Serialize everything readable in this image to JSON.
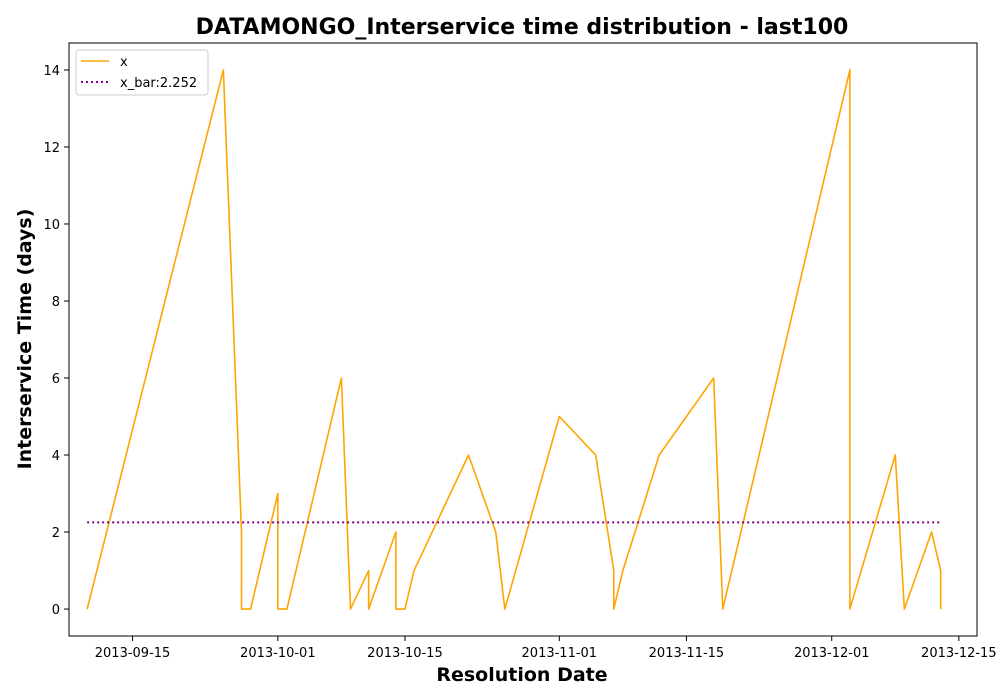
{
  "chart_data": {
    "type": "line",
    "title": "DATAMONGO_Interservice time distribution - last100",
    "xlabel": "Resolution Date",
    "ylabel": "Interservice Time (days)",
    "x_ticks": [
      "2013-09-15",
      "2013-10-01",
      "2013-10-15",
      "2013-11-01",
      "2013-11-15",
      "2013-12-01",
      "2013-12-15"
    ],
    "y_ticks": [
      0,
      2,
      4,
      6,
      8,
      10,
      12,
      14
    ],
    "xlim": [
      "2013-09-08",
      "2013-12-17"
    ],
    "ylim": [
      -0.7,
      14.7
    ],
    "grid": false,
    "legend_position": "top-left",
    "series": [
      {
        "name": "x",
        "color": "#ffa500",
        "style": "solid",
        "points": [
          [
            "2013-09-10",
            0
          ],
          [
            "2013-09-10",
            0
          ],
          [
            "2013-09-25",
            14
          ],
          [
            "2013-09-27",
            2
          ],
          [
            "2013-09-27",
            0
          ],
          [
            "2013-09-28",
            0
          ],
          [
            "2013-10-01",
            3
          ],
          [
            "2013-10-01",
            0
          ],
          [
            "2013-10-02",
            0
          ],
          [
            "2013-10-08",
            6
          ],
          [
            "2013-10-09",
            0
          ],
          [
            "2013-10-11",
            1
          ],
          [
            "2013-10-11",
            0
          ],
          [
            "2013-10-14",
            2
          ],
          [
            "2013-10-14",
            0
          ],
          [
            "2013-10-15",
            0
          ],
          [
            "2013-10-16",
            1
          ],
          [
            "2013-10-22",
            4
          ],
          [
            "2013-10-25",
            2
          ],
          [
            "2013-10-26",
            0
          ],
          [
            "2013-10-26",
            0
          ],
          [
            "2013-11-01",
            5
          ],
          [
            "2013-11-05",
            4
          ],
          [
            "2013-11-07",
            1
          ],
          [
            "2013-11-07",
            0
          ],
          [
            "2013-11-08",
            1
          ],
          [
            "2013-11-12",
            4
          ],
          [
            "2013-11-18",
            6
          ],
          [
            "2013-11-19",
            0
          ],
          [
            "2013-12-03",
            14
          ],
          [
            "2013-12-03",
            0
          ],
          [
            "2013-12-08",
            4
          ],
          [
            "2013-12-09",
            0
          ],
          [
            "2013-12-12",
            2
          ],
          [
            "2013-12-13",
            1
          ],
          [
            "2013-12-13",
            0
          ]
        ]
      },
      {
        "name": "x_bar:2.252",
        "color": "#800080",
        "style": "dotted",
        "points": [
          [
            "2013-09-10",
            2.252
          ],
          [
            "2013-12-13",
            2.252
          ]
        ]
      }
    ]
  }
}
